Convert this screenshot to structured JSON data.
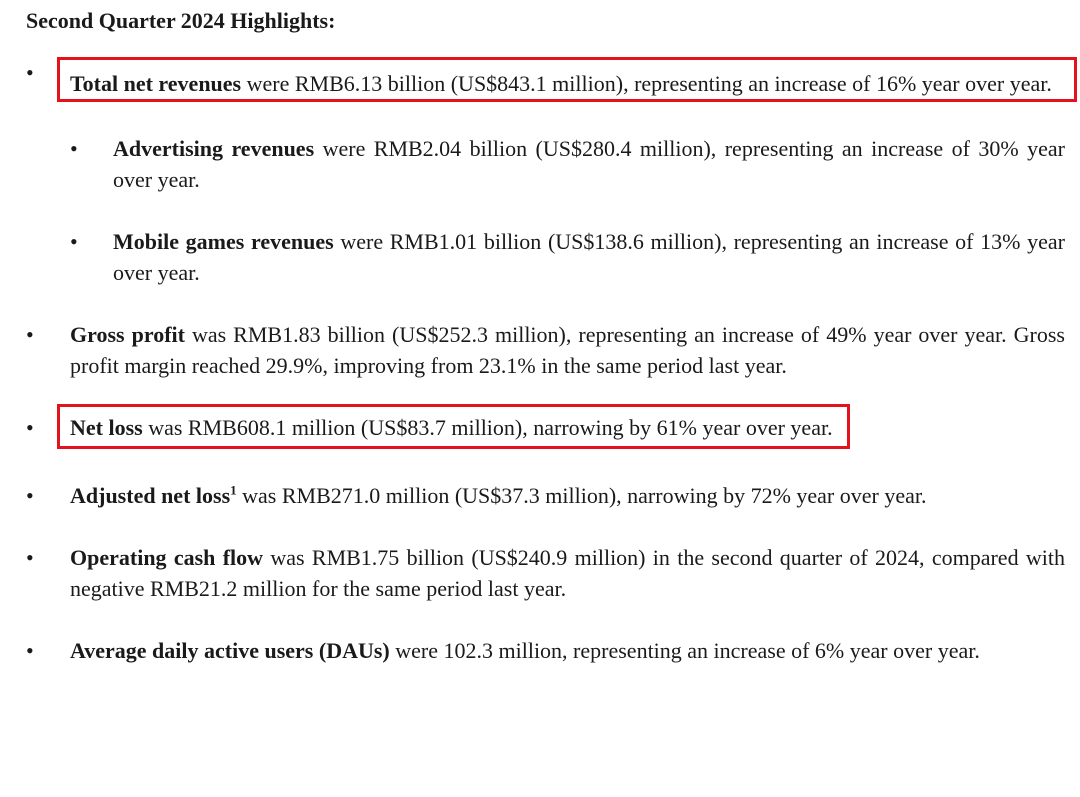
{
  "title": "Second Quarter 2024 Highlights:",
  "items": [
    {
      "label": "Total net revenues",
      "text": "were RMB6.13 billion (US$843.1 million), representing an increase of 16% year over year."
    },
    {
      "label": "Advertising revenues",
      "text": "were RMB2.04 billion (US$280.4 million), representing an increase of 30% year over year."
    },
    {
      "label": "Mobile games revenues",
      "text": "were RMB1.01 billion (US$138.6 million), representing an increase of 13% year over year."
    },
    {
      "label": "Gross profit",
      "text": "was RMB1.83 billion (US$252.3 million), representing an increase of 49% year over year. Gross profit margin reached 29.9%, improving from 23.1% in the same period last year."
    },
    {
      "label": "Net loss",
      "text": "was RMB608.1 million (US$83.7 million), narrowing by 61% year over year."
    },
    {
      "label": "Adjusted net loss",
      "footnote": "1",
      "text": "was RMB271.0 million (US$37.3 million), narrowing by 72% year over year."
    },
    {
      "label": "Operating cash flow",
      "text": "was RMB1.75 billion (US$240.9 million) in the second quarter of 2024, compared with negative RMB21.2 million for the same period last year."
    },
    {
      "label": "Average daily active users (DAUs)",
      "text": "were 102.3 million, representing an increase of 6% year over year."
    }
  ]
}
